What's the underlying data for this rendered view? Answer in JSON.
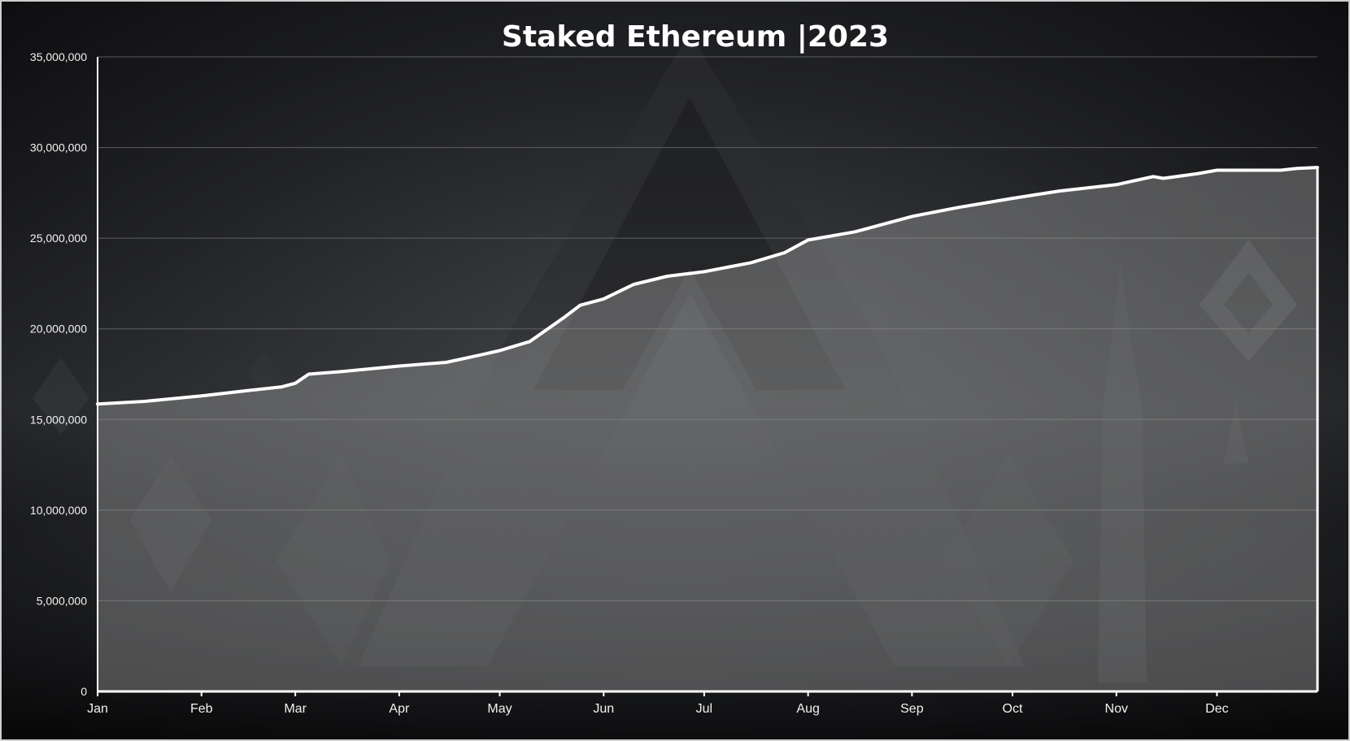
{
  "chart_data": {
    "type": "area",
    "title": "Staked Ethereum |2023",
    "xlabel": "",
    "ylabel": "",
    "ylim": [
      0,
      35000000
    ],
    "y_ticks": [
      0,
      5000000,
      10000000,
      15000000,
      20000000,
      25000000,
      30000000,
      35000000
    ],
    "y_tick_labels": [
      "0",
      "5,000,000",
      "10,000,000",
      "15,000,000",
      "20,000,000",
      "25,000,000",
      "30,000,000",
      "35,000,000"
    ],
    "x_ticks": [
      "2023-01-01",
      "2023-02-01",
      "2023-03-01",
      "2023-04-01",
      "2023-05-01",
      "2023-06-01",
      "2023-07-01",
      "2023-08-01",
      "2023-09-01",
      "2023-10-01",
      "2023-11-01",
      "2023-12-01"
    ],
    "x_tick_labels": [
      "Jan",
      "Feb",
      "Mar",
      "Apr",
      "May",
      "Jun",
      "Jul",
      "Aug",
      "Sep",
      "Oct",
      "Nov",
      "Dec"
    ],
    "xlim": [
      "2023-01-01",
      "2023-12-31"
    ],
    "grid": true,
    "legend": "none",
    "series": [
      {
        "x": [
          "2023-01-01",
          "2023-01-15",
          "2023-02-01",
          "2023-02-15",
          "2023-02-25",
          "2023-03-01",
          "2023-03-05",
          "2023-03-15",
          "2023-04-01",
          "2023-04-15",
          "2023-04-25",
          "2023-05-01",
          "2023-05-10",
          "2023-05-20",
          "2023-05-25",
          "2023-06-01",
          "2023-06-10",
          "2023-06-20",
          "2023-07-01",
          "2023-07-15",
          "2023-07-25",
          "2023-08-01",
          "2023-08-15",
          "2023-09-01",
          "2023-09-15",
          "2023-10-01",
          "2023-10-15",
          "2023-11-01",
          "2023-11-12",
          "2023-11-15",
          "2023-11-25",
          "2023-12-01",
          "2023-12-10",
          "2023-12-20",
          "2023-12-25",
          "2023-12-31"
        ],
        "values": [
          15850000,
          16000000,
          16300000,
          16600000,
          16800000,
          17000000,
          17500000,
          17650000,
          17950000,
          18150000,
          18550000,
          18800000,
          19300000,
          20600000,
          21300000,
          21650000,
          22450000,
          22900000,
          23150000,
          23650000,
          24200000,
          24900000,
          25350000,
          26200000,
          26700000,
          27200000,
          27600000,
          27950000,
          28400000,
          28300000,
          28550000,
          28750000,
          28750000,
          28750000,
          28850000,
          28900000
        ]
      }
    ],
    "colors": {
      "line": "#ffffff",
      "area_fill": "#a0a0a0",
      "gridline": "#6e6e6e",
      "axis": "#ffffff",
      "text": "#f2f2f2",
      "background": "#151618",
      "border": "#cfcfcf"
    }
  }
}
